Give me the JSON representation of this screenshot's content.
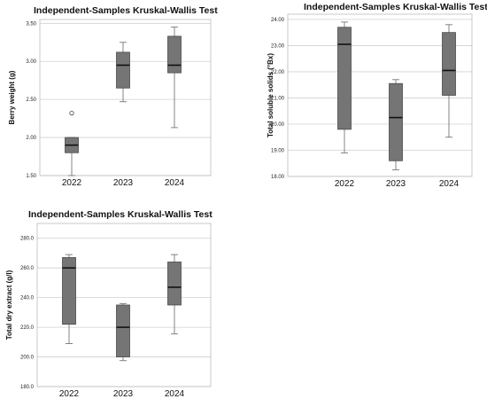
{
  "chart_data": [
    {
      "type": "boxplot",
      "title": "Independent-Samples Kruskal-Wallis Test",
      "xlabel": "",
      "ylabel": "Berry weight (g)",
      "categories": [
        "2022",
        "2023",
        "2024"
      ],
      "ylim": [
        1.5,
        3.55
      ],
      "yticks": [
        "1.50",
        "2.00",
        "2.50",
        "3.00",
        "3.50"
      ],
      "ytick_values": [
        1.5,
        2.0,
        2.5,
        3.0,
        3.5
      ],
      "grid": true,
      "boxes": [
        {
          "min": 1.5,
          "q1": 1.8,
          "median": 1.9,
          "q3": 2.0,
          "max": 2.0,
          "outliers": [
            2.32
          ]
        },
        {
          "min": 2.47,
          "q1": 2.65,
          "median": 2.95,
          "q3": 3.12,
          "max": 3.25,
          "outliers": []
        },
        {
          "min": 2.13,
          "q1": 2.85,
          "median": 2.95,
          "q3": 3.33,
          "max": 3.45,
          "outliers": []
        }
      ]
    },
    {
      "type": "boxplot",
      "title": "Independent-Samples Kruskal-Wallis Test",
      "xlabel": "",
      "ylabel": "Total soluble solids (°Bx)",
      "categories": [
        "2022",
        "2023",
        "2024"
      ],
      "ylim": [
        18.0,
        24.2
      ],
      "yticks": [
        "18.00",
        "19.00",
        "20.00",
        "21.00",
        "22.00",
        "23.00",
        "24.00"
      ],
      "ytick_values": [
        18,
        19,
        20,
        21,
        22,
        23,
        24
      ],
      "grid": true,
      "boxes": [
        {
          "min": 18.9,
          "q1": 19.8,
          "median": 23.05,
          "q3": 23.7,
          "max": 23.9,
          "outliers": []
        },
        {
          "min": 18.25,
          "q1": 18.6,
          "median": 20.25,
          "q3": 21.55,
          "max": 21.7,
          "outliers": []
        },
        {
          "min": 19.5,
          "q1": 21.1,
          "median": 22.05,
          "q3": 23.5,
          "max": 23.8,
          "outliers": []
        }
      ]
    },
    {
      "type": "boxplot",
      "title": "Independent-Samples Kruskal-Wallis Test",
      "xlabel": "",
      "ylabel": "Total dry extract (g/l)",
      "categories": [
        "2022",
        "2023",
        "2024"
      ],
      "ylim": [
        180,
        290
      ],
      "yticks": [
        "180.0",
        "200.0",
        "220.0",
        "240.0",
        "260.0",
        "280.0"
      ],
      "ytick_values": [
        180,
        200,
        220,
        240,
        260,
        280
      ],
      "grid": true,
      "boxes": [
        {
          "min": 209,
          "q1": 222,
          "median": 260,
          "q3": 267,
          "max": 269,
          "outliers": []
        },
        {
          "min": 197.5,
          "q1": 200,
          "median": 220,
          "q3": 235,
          "max": 236,
          "outliers": []
        },
        {
          "min": 215.5,
          "q1": 235,
          "median": 247,
          "q3": 264,
          "max": 269,
          "outliers": []
        }
      ]
    }
  ],
  "colors": {
    "box_fill": "#757575",
    "box_stroke": "#4a4a4a",
    "median": "#111111",
    "whisker": "#777777",
    "grid": "#d0d0d0",
    "frame": "#bdbdbd"
  }
}
